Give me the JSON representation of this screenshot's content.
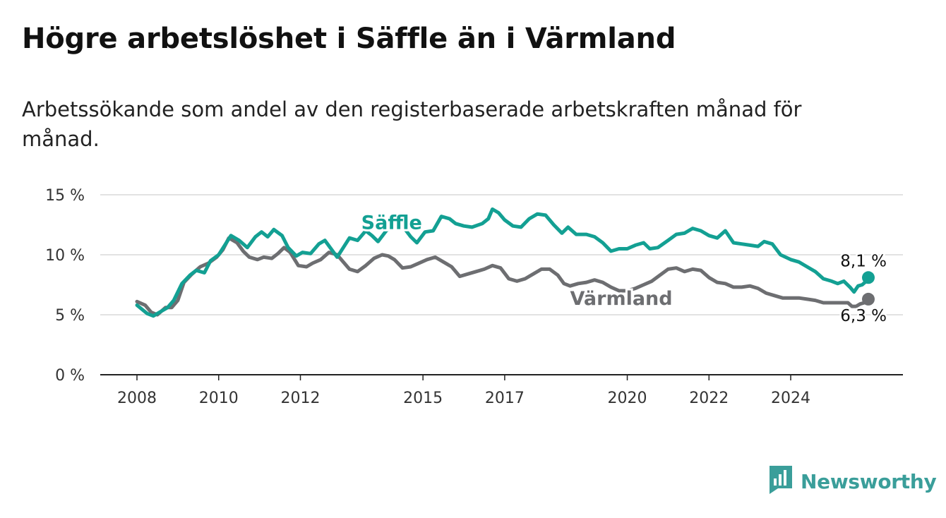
{
  "title": "Högre arbetslöshet i Säffle än i Värmland",
  "subtitle": "Arbetssökande som andel av den registerbaserade arbetskraften månad för månad.",
  "brand": {
    "name": "Newsworthy",
    "icon": "newsworthy-logo-icon",
    "color": "#3a9e9a"
  },
  "chart_data": {
    "type": "line",
    "xlim": [
      2008,
      2025.9
    ],
    "ylim": [
      0,
      15
    ],
    "yticks": [
      0,
      5,
      10,
      15
    ],
    "ytick_labels": [
      "0 %",
      "5 %",
      "10 %",
      "15 %"
    ],
    "xticks": [
      2008,
      2010,
      2012,
      2015,
      2017,
      2020,
      2022,
      2024
    ],
    "xtick_labels": [
      "2008",
      "2010",
      "2012",
      "2015",
      "2017",
      "2020",
      "2022",
      "2024"
    ],
    "grid": true,
    "legend": "inline labels",
    "series": [
      {
        "name": "Säffle",
        "color": "#13a093",
        "end_label": "8,1 %",
        "points": [
          [
            2008.0,
            5.8
          ],
          [
            2008.25,
            5.1
          ],
          [
            2008.4,
            4.9
          ],
          [
            2008.6,
            5.3
          ],
          [
            2008.75,
            5.6
          ],
          [
            2008.9,
            6.2
          ],
          [
            2009.1,
            7.6
          ],
          [
            2009.3,
            8.3
          ],
          [
            2009.45,
            8.7
          ],
          [
            2009.65,
            8.5
          ],
          [
            2009.8,
            9.5
          ],
          [
            2010.0,
            10.0
          ],
          [
            2010.15,
            10.8
          ],
          [
            2010.3,
            11.6
          ],
          [
            2010.5,
            11.2
          ],
          [
            2010.7,
            10.6
          ],
          [
            2010.9,
            11.5
          ],
          [
            2011.05,
            11.9
          ],
          [
            2011.2,
            11.5
          ],
          [
            2011.35,
            12.1
          ],
          [
            2011.55,
            11.6
          ],
          [
            2011.7,
            10.6
          ],
          [
            2011.9,
            9.9
          ],
          [
            2012.05,
            10.2
          ],
          [
            2012.25,
            10.1
          ],
          [
            2012.45,
            10.9
          ],
          [
            2012.6,
            11.2
          ],
          [
            2012.75,
            10.5
          ],
          [
            2012.9,
            9.8
          ],
          [
            2013.05,
            10.6
          ],
          [
            2013.2,
            11.4
          ],
          [
            2013.4,
            11.2
          ],
          [
            2013.6,
            12.0
          ],
          [
            2013.75,
            11.6
          ],
          [
            2013.9,
            11.1
          ],
          [
            2014.1,
            12.0
          ],
          [
            2014.3,
            12.5
          ],
          [
            2014.5,
            12.4
          ],
          [
            2014.7,
            11.5
          ],
          [
            2014.85,
            11.0
          ],
          [
            2015.05,
            11.9
          ],
          [
            2015.25,
            12.0
          ],
          [
            2015.45,
            13.2
          ],
          [
            2015.65,
            13.0
          ],
          [
            2015.8,
            12.6
          ],
          [
            2016.0,
            12.4
          ],
          [
            2016.2,
            12.3
          ],
          [
            2016.45,
            12.6
          ],
          [
            2016.6,
            13.0
          ],
          [
            2016.7,
            13.8
          ],
          [
            2016.85,
            13.5
          ],
          [
            2017.0,
            12.9
          ],
          [
            2017.2,
            12.4
          ],
          [
            2017.4,
            12.3
          ],
          [
            2017.6,
            13.0
          ],
          [
            2017.8,
            13.4
          ],
          [
            2018.0,
            13.3
          ],
          [
            2018.2,
            12.5
          ],
          [
            2018.4,
            11.8
          ],
          [
            2018.55,
            12.3
          ],
          [
            2018.75,
            11.7
          ],
          [
            2019.0,
            11.7
          ],
          [
            2019.2,
            11.5
          ],
          [
            2019.4,
            11.0
          ],
          [
            2019.6,
            10.3
          ],
          [
            2019.8,
            10.5
          ],
          [
            2020.0,
            10.5
          ],
          [
            2020.2,
            10.8
          ],
          [
            2020.4,
            11.0
          ],
          [
            2020.55,
            10.5
          ],
          [
            2020.75,
            10.6
          ],
          [
            2021.0,
            11.2
          ],
          [
            2021.2,
            11.7
          ],
          [
            2021.4,
            11.8
          ],
          [
            2021.6,
            12.2
          ],
          [
            2021.8,
            12.0
          ],
          [
            2022.0,
            11.6
          ],
          [
            2022.2,
            11.4
          ],
          [
            2022.4,
            12.0
          ],
          [
            2022.6,
            11.0
          ],
          [
            2022.8,
            10.9
          ],
          [
            2023.0,
            10.8
          ],
          [
            2023.2,
            10.7
          ],
          [
            2023.35,
            11.1
          ],
          [
            2023.55,
            10.9
          ],
          [
            2023.75,
            10.0
          ],
          [
            2024.0,
            9.6
          ],
          [
            2024.2,
            9.4
          ],
          [
            2024.4,
            9.0
          ],
          [
            2024.6,
            8.6
          ],
          [
            2024.8,
            8.0
          ],
          [
            2025.0,
            7.8
          ],
          [
            2025.15,
            7.6
          ],
          [
            2025.3,
            7.8
          ],
          [
            2025.45,
            7.3
          ],
          [
            2025.55,
            6.9
          ],
          [
            2025.65,
            7.4
          ],
          [
            2025.75,
            7.5
          ],
          [
            2025.85,
            7.8
          ],
          [
            2025.9,
            8.1
          ]
        ]
      },
      {
        "name": "Värmland",
        "color": "#6d6e71",
        "end_label": "6,3 %",
        "points": [
          [
            2008.0,
            6.1
          ],
          [
            2008.2,
            5.8
          ],
          [
            2008.35,
            5.2
          ],
          [
            2008.5,
            5.0
          ],
          [
            2008.7,
            5.6
          ],
          [
            2008.85,
            5.6
          ],
          [
            2009.0,
            6.2
          ],
          [
            2009.15,
            7.7
          ],
          [
            2009.35,
            8.4
          ],
          [
            2009.55,
            9.0
          ],
          [
            2009.75,
            9.3
          ],
          [
            2009.95,
            9.8
          ],
          [
            2010.1,
            10.4
          ],
          [
            2010.25,
            11.4
          ],
          [
            2010.45,
            11.0
          ],
          [
            2010.6,
            10.3
          ],
          [
            2010.75,
            9.8
          ],
          [
            2010.95,
            9.6
          ],
          [
            2011.1,
            9.8
          ],
          [
            2011.3,
            9.7
          ],
          [
            2011.45,
            10.1
          ],
          [
            2011.6,
            10.6
          ],
          [
            2011.75,
            10.2
          ],
          [
            2011.95,
            9.1
          ],
          [
            2012.15,
            9.0
          ],
          [
            2012.3,
            9.3
          ],
          [
            2012.5,
            9.6
          ],
          [
            2012.7,
            10.2
          ],
          [
            2012.9,
            10.0
          ],
          [
            2013.05,
            9.4
          ],
          [
            2013.2,
            8.8
          ],
          [
            2013.4,
            8.6
          ],
          [
            2013.6,
            9.1
          ],
          [
            2013.8,
            9.7
          ],
          [
            2014.0,
            10.0
          ],
          [
            2014.15,
            9.9
          ],
          [
            2014.3,
            9.6
          ],
          [
            2014.5,
            8.9
          ],
          [
            2014.7,
            9.0
          ],
          [
            2014.9,
            9.3
          ],
          [
            2015.1,
            9.6
          ],
          [
            2015.3,
            9.8
          ],
          [
            2015.5,
            9.4
          ],
          [
            2015.7,
            9.0
          ],
          [
            2015.9,
            8.2
          ],
          [
            2016.1,
            8.4
          ],
          [
            2016.3,
            8.6
          ],
          [
            2016.5,
            8.8
          ],
          [
            2016.7,
            9.1
          ],
          [
            2016.9,
            8.9
          ],
          [
            2017.1,
            8.0
          ],
          [
            2017.3,
            7.8
          ],
          [
            2017.5,
            8.0
          ],
          [
            2017.7,
            8.4
          ],
          [
            2017.9,
            8.8
          ],
          [
            2018.1,
            8.8
          ],
          [
            2018.3,
            8.3
          ],
          [
            2018.45,
            7.6
          ],
          [
            2018.6,
            7.4
          ],
          [
            2018.8,
            7.6
          ],
          [
            2019.0,
            7.7
          ],
          [
            2019.2,
            7.9
          ],
          [
            2019.4,
            7.7
          ],
          [
            2019.6,
            7.3
          ],
          [
            2019.8,
            7.0
          ],
          [
            2020.0,
            7.0
          ],
          [
            2020.2,
            7.2
          ],
          [
            2020.4,
            7.5
          ],
          [
            2020.6,
            7.8
          ],
          [
            2020.8,
            8.3
          ],
          [
            2021.0,
            8.8
          ],
          [
            2021.2,
            8.9
          ],
          [
            2021.4,
            8.6
          ],
          [
            2021.6,
            8.8
          ],
          [
            2021.8,
            8.7
          ],
          [
            2022.0,
            8.1
          ],
          [
            2022.2,
            7.7
          ],
          [
            2022.4,
            7.6
          ],
          [
            2022.6,
            7.3
          ],
          [
            2022.8,
            7.3
          ],
          [
            2023.0,
            7.4
          ],
          [
            2023.2,
            7.2
          ],
          [
            2023.4,
            6.8
          ],
          [
            2023.6,
            6.6
          ],
          [
            2023.8,
            6.4
          ],
          [
            2024.0,
            6.4
          ],
          [
            2024.2,
            6.4
          ],
          [
            2024.4,
            6.3
          ],
          [
            2024.6,
            6.2
          ],
          [
            2024.8,
            6.0
          ],
          [
            2025.0,
            6.0
          ],
          [
            2025.2,
            6.0
          ],
          [
            2025.4,
            6.0
          ],
          [
            2025.5,
            5.7
          ],
          [
            2025.6,
            5.7
          ],
          [
            2025.7,
            5.9
          ],
          [
            2025.8,
            6.0
          ],
          [
            2025.9,
            6.3
          ]
        ]
      }
    ]
  }
}
